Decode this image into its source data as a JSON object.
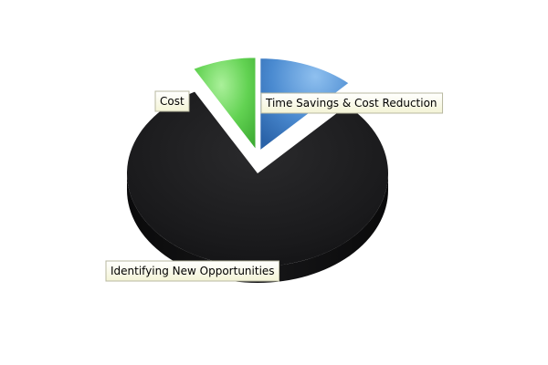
{
  "chart_data": {
    "type": "pie",
    "style": "3d",
    "legend": "none",
    "slices": [
      {
        "label": "Time Savings & Cost Reduction",
        "value": 12,
        "color": "#3d7fc8",
        "exploded": true
      },
      {
        "label": "Identifying New Opportunities",
        "value": 80,
        "color": "#1c1c1e",
        "exploded": false
      },
      {
        "label": "Cost",
        "value": 8,
        "color": "#5ccc4c",
        "exploded": true
      }
    ]
  }
}
